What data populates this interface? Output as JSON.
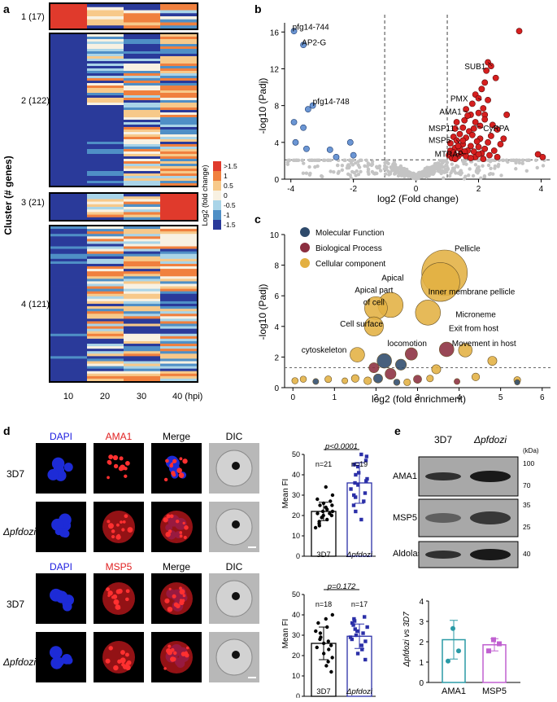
{
  "figure": {
    "panel_labels": {
      "a": "a",
      "b": "b",
      "c": "c",
      "d": "d",
      "e": "e"
    }
  },
  "panel_a": {
    "y_title": "Cluster (# genes)",
    "x_ticks": [
      "10",
      "20",
      "30",
      "40 (hpi)"
    ],
    "clusters": [
      {
        "label": "1 (17)",
        "genes": 17
      },
      {
        "label": "2 (122)",
        "genes": 122
      },
      {
        "label": "3 (21)",
        "genes": 21
      },
      {
        "label": "4 (121)",
        "genes": 121
      }
    ],
    "colorbar": {
      "title": "Log2 (fold change)",
      "ticks": [
        ">1.5",
        "1",
        "0.5",
        "0",
        "-0.5",
        "-1",
        "-1.5"
      ],
      "colors": [
        "#e03a2c",
        "#f0803e",
        "#f7c98a",
        "#f8f1e2",
        "#a9d4e8",
        "#4f8fc6",
        "#2a3a9a"
      ]
    }
  },
  "panel_b": {
    "chart_data": {
      "type": "scatter",
      "xlabel": "log2 (Fold change)",
      "ylabel": "-log10 (Padj)",
      "xlim": [
        -4.2,
        4.3
      ],
      "ylim": [
        0,
        17
      ],
      "x_ticks": [
        "-4",
        "-2",
        "0",
        "2",
        "4"
      ],
      "y_ticks": [
        "0",
        "4",
        "8",
        "12",
        "16"
      ],
      "thresholds": {
        "x": [
          -1,
          1
        ],
        "y": 2.1
      },
      "annotations": [
        {
          "text": "pfg14-744",
          "x": -3.9,
          "y": 16.1
        },
        {
          "text": "AP2-G",
          "x": -3.6,
          "y": 14.6
        },
        {
          "text": "pfg14-748",
          "x": -3.3,
          "y": 8.0
        },
        {
          "text": "SUB1",
          "x": 2.3,
          "y": 12.7
        },
        {
          "text": "PMX",
          "x": 2.1,
          "y": 8.6
        },
        {
          "text": "AMA1",
          "x": 1.5,
          "y": 7.4
        },
        {
          "text": "CyRPA",
          "x": 1.9,
          "y": 5.8
        },
        {
          "text": "MSP11",
          "x": 1.4,
          "y": 5.4
        },
        {
          "text": "MSP5",
          "x": 1.4,
          "y": 3.9
        },
        {
          "text": "MTRAP",
          "x": 1.6,
          "y": 2.8
        }
      ],
      "down_points": [
        [
          -3.9,
          16.1
        ],
        [
          -3.6,
          14.6
        ],
        [
          -3.3,
          8.0
        ],
        [
          -3.45,
          7.6
        ],
        [
          -3.9,
          6.2
        ],
        [
          -3.6,
          5.6
        ],
        [
          -3.85,
          4.0
        ],
        [
          -3.5,
          3.3
        ],
        [
          -2.75,
          3.2
        ],
        [
          -2.1,
          4.0
        ],
        [
          -2.0,
          2.6
        ],
        [
          -2.55,
          2.4
        ]
      ],
      "up_points": [
        [
          3.3,
          16.1
        ],
        [
          2.3,
          12.7
        ],
        [
          2.4,
          12.3
        ],
        [
          2.25,
          11.8
        ],
        [
          2.55,
          11.0
        ],
        [
          2.2,
          10.5
        ],
        [
          2.1,
          9.8
        ],
        [
          1.9,
          9.2
        ],
        [
          2.0,
          8.8
        ],
        [
          1.8,
          8.2
        ],
        [
          2.3,
          8.6
        ],
        [
          1.6,
          7.6
        ],
        [
          1.75,
          7.0
        ],
        [
          2.0,
          7.2
        ],
        [
          2.2,
          7.0
        ],
        [
          1.55,
          6.4
        ],
        [
          1.9,
          6.2
        ],
        [
          1.3,
          6.2
        ],
        [
          2.05,
          5.8
        ],
        [
          1.5,
          5.6
        ],
        [
          1.25,
          5.5
        ],
        [
          1.7,
          5.2
        ],
        [
          2.6,
          5.4
        ],
        [
          2.9,
          7.0
        ],
        [
          2.2,
          6.5
        ],
        [
          1.4,
          4.9
        ],
        [
          1.8,
          4.8
        ],
        [
          2.4,
          4.7
        ],
        [
          1.2,
          4.6
        ],
        [
          1.6,
          4.5
        ],
        [
          2.05,
          4.4
        ],
        [
          1.3,
          4.2
        ],
        [
          1.95,
          4.1
        ],
        [
          2.3,
          4.0
        ],
        [
          1.1,
          3.9
        ],
        [
          1.5,
          3.8
        ],
        [
          2.7,
          3.8
        ],
        [
          1.75,
          3.6
        ],
        [
          2.0,
          3.5
        ],
        [
          1.25,
          3.4
        ],
        [
          1.4,
          3.3
        ],
        [
          2.2,
          3.3
        ],
        [
          1.1,
          3.1
        ],
        [
          1.65,
          3.1
        ],
        [
          1.85,
          3.0
        ],
        [
          2.5,
          3.1
        ],
        [
          1.2,
          2.9
        ],
        [
          1.45,
          2.8
        ],
        [
          2.1,
          2.8
        ],
        [
          2.35,
          2.6
        ],
        [
          1.05,
          2.6
        ],
        [
          1.35,
          2.5
        ],
        [
          1.6,
          2.5
        ],
        [
          1.9,
          2.4
        ],
        [
          2.6,
          2.4
        ],
        [
          1.15,
          2.3
        ],
        [
          1.75,
          2.3
        ],
        [
          2.15,
          2.2
        ],
        [
          3.9,
          2.7
        ],
        [
          4.05,
          2.4
        ],
        [
          1.5,
          4.2
        ],
        [
          1.85,
          5.5
        ],
        [
          2.45,
          5.9
        ],
        [
          1.65,
          6.9
        ],
        [
          2.15,
          7.7
        ],
        [
          1.35,
          3.6
        ],
        [
          2.8,
          4.4
        ],
        [
          1.55,
          3.0
        ],
        [
          2.0,
          2.7
        ],
        [
          1.25,
          2.2
        ]
      ]
    }
  },
  "panel_c": {
    "chart_data": {
      "type": "scatter",
      "xlabel": "log2 (fold enrichment)",
      "ylabel": "-log10 (Padj)",
      "xlim": [
        -0.2,
        6.2
      ],
      "ylim": [
        0,
        10
      ],
      "x_ticks": [
        "0",
        "1",
        "2",
        "3",
        "4",
        "5",
        "6"
      ],
      "y_ticks": [
        "0",
        "2",
        "4",
        "6",
        "8",
        "10"
      ],
      "threshold_y": 1.3,
      "legend": [
        {
          "label": "Molecular Function",
          "color": "#2e4a6b"
        },
        {
          "label": "Biological Process",
          "color": "#8b2e3f"
        },
        {
          "label": "Cellular component",
          "color": "#e3b042"
        }
      ],
      "bubbles": [
        {
          "x": 3.65,
          "y": 7.5,
          "r": 1.0,
          "cat": 2
        },
        {
          "x": 3.55,
          "y": 6.9,
          "r": 0.85,
          "cat": 2
        },
        {
          "x": 2.35,
          "y": 5.4,
          "r": 0.55,
          "cat": 2
        },
        {
          "x": 2.0,
          "y": 5.2,
          "r": 0.5,
          "cat": 2
        },
        {
          "x": 3.25,
          "y": 4.9,
          "r": 0.55,
          "cat": 2
        },
        {
          "x": 1.95,
          "y": 4.0,
          "r": 0.42,
          "cat": 2
        },
        {
          "x": 1.55,
          "y": 2.15,
          "r": 0.32,
          "cat": 2
        },
        {
          "x": 2.2,
          "y": 1.75,
          "r": 0.32,
          "cat": 0
        },
        {
          "x": 2.85,
          "y": 2.2,
          "r": 0.27,
          "cat": 1
        },
        {
          "x": 3.7,
          "y": 2.5,
          "r": 0.32,
          "cat": 1
        },
        {
          "x": 4.15,
          "y": 2.45,
          "r": 0.3,
          "cat": 2
        },
        {
          "x": 2.6,
          "y": 1.5,
          "r": 0.24,
          "cat": 0
        },
        {
          "x": 1.95,
          "y": 1.3,
          "r": 0.22,
          "cat": 1
        },
        {
          "x": 3.45,
          "y": 1.2,
          "r": 0.2,
          "cat": 2
        },
        {
          "x": 4.8,
          "y": 1.75,
          "r": 0.2,
          "cat": 2
        },
        {
          "x": 2.35,
          "y": 0.9,
          "r": 0.24,
          "cat": 1
        },
        {
          "x": 2.05,
          "y": 0.6,
          "r": 0.2,
          "cat": 0
        },
        {
          "x": 3.0,
          "y": 0.55,
          "r": 0.18,
          "cat": 1
        },
        {
          "x": 4.4,
          "y": 0.7,
          "r": 0.17,
          "cat": 2
        },
        {
          "x": 1.5,
          "y": 0.6,
          "r": 0.17,
          "cat": 2
        },
        {
          "x": 1.25,
          "y": 0.45,
          "r": 0.13,
          "cat": 2
        },
        {
          "x": 0.85,
          "y": 0.55,
          "r": 0.15,
          "cat": 2
        },
        {
          "x": 0.55,
          "y": 0.4,
          "r": 0.13,
          "cat": 0
        },
        {
          "x": 0.25,
          "y": 0.55,
          "r": 0.14,
          "cat": 2
        },
        {
          "x": 0.05,
          "y": 0.45,
          "r": 0.14,
          "cat": 2
        },
        {
          "x": 2.75,
          "y": 0.35,
          "r": 0.15,
          "cat": 2
        },
        {
          "x": 3.95,
          "y": 0.4,
          "r": 0.13,
          "cat": 1
        },
        {
          "x": 5.4,
          "y": 0.5,
          "r": 0.15,
          "cat": 2
        },
        {
          "x": 5.4,
          "y": 0.35,
          "r": 0.12,
          "cat": 0
        },
        {
          "x": 2.5,
          "y": 0.35,
          "r": 0.14,
          "cat": 0
        },
        {
          "x": 1.8,
          "y": 0.45,
          "r": 0.17,
          "cat": 2
        },
        {
          "x": 3.3,
          "y": 0.6,
          "r": 0.15,
          "cat": 2
        }
      ],
      "annotations": [
        {
          "text": "Pellicle",
          "x": 4.2,
          "y": 8.9
        },
        {
          "text": "Apical",
          "x": 2.4,
          "y": 7.0
        },
        {
          "text": "Inner membrane pellicle",
          "x": 4.3,
          "y": 6.1
        },
        {
          "text": "Apical part",
          "x": 1.95,
          "y": 6.2
        },
        {
          "text": "of cell",
          "x": 1.95,
          "y": 5.4
        },
        {
          "text": "Microneme",
          "x": 4.4,
          "y": 4.6
        },
        {
          "text": "Cell surface",
          "x": 1.65,
          "y": 4.0
        },
        {
          "text": "Exit from host",
          "x": 4.35,
          "y": 3.7
        },
        {
          "text": "locomotion",
          "x": 2.75,
          "y": 2.7
        },
        {
          "text": "Movement in host",
          "x": 4.6,
          "y": 2.7
        },
        {
          "text": "cytoskeleton",
          "x": 0.75,
          "y": 2.3
        }
      ]
    }
  },
  "panel_d": {
    "ama1": {
      "col_labels": [
        "DAPI",
        "AMA1",
        "Merge",
        "DIC"
      ],
      "row_labels": [
        "3D7",
        "Δpfdozi"
      ],
      "chart_data": {
        "type": "bar",
        "ylabel": "Mean FI",
        "ylim": [
          0,
          50
        ],
        "y_ticks": [
          "0",
          "10",
          "20",
          "30",
          "40",
          "50"
        ],
        "categories": [
          "3D7",
          "Δpfdozi"
        ],
        "values": [
          22,
          36
        ],
        "errors": [
          4.5,
          10
        ],
        "n_labels": [
          "n=21",
          "n=19"
        ],
        "p_label": "p<0.0001",
        "colors": [
          "#000000",
          "#2b2fa8"
        ],
        "points": [
          [
            14,
            15,
            16,
            17,
            18,
            19,
            20,
            20,
            21,
            21,
            22,
            22,
            23,
            24,
            25,
            26,
            27,
            28,
            30,
            34,
            25
          ],
          [
            18,
            22,
            25,
            27,
            29,
            30,
            31,
            33,
            35,
            36,
            38,
            40,
            41,
            44,
            45,
            47,
            49,
            50,
            37
          ]
        ]
      }
    },
    "msp5": {
      "col_labels": [
        "DAPI",
        "MSP5",
        "Merge",
        "DIC"
      ],
      "row_labels": [
        "3D7",
        "Δpfdozi"
      ],
      "chart_data": {
        "type": "bar",
        "ylabel": "Mean FI",
        "ylim": [
          0,
          50
        ],
        "y_ticks": [
          "0",
          "10",
          "20",
          "30",
          "40",
          "50"
        ],
        "categories": [
          "3D7",
          "Δpfdozi"
        ],
        "values": [
          26,
          29.5
        ],
        "errors": [
          8,
          6
        ],
        "n_labels": [
          "n=18",
          "n=17"
        ],
        "p_label": "p=0.172",
        "colors": [
          "#000000",
          "#2b2fa8"
        ],
        "points": [
          [
            12,
            15,
            17,
            19,
            21,
            23,
            24,
            25,
            26,
            27,
            28,
            29,
            31,
            32,
            34,
            36,
            38,
            40
          ],
          [
            18,
            21,
            23,
            25,
            27,
            28,
            29,
            30,
            31,
            32,
            33,
            34,
            35,
            36,
            38,
            39,
            37
          ]
        ]
      }
    }
  },
  "panel_e": {
    "blot": {
      "col_labels": [
        "3D7",
        "Δpfdozi"
      ],
      "kda_label": "(kDa)",
      "rows": [
        {
          "label": "AMA1",
          "markers": [
            "100",
            "70"
          ]
        },
        {
          "label": "MSP5",
          "markers": [
            "35",
            "25"
          ]
        },
        {
          "label": "Aldolase",
          "markers": [
            "40"
          ]
        }
      ]
    },
    "chart_data": {
      "type": "bar",
      "ylabel": "Δpfdozi vs 3D7",
      "ylim": [
        0,
        4
      ],
      "y_ticks": [
        "0",
        "1",
        "2",
        "3",
        "4"
      ],
      "categories": [
        "AMA1",
        "MSP5"
      ],
      "values": [
        2.1,
        1.85
      ],
      "errors": [
        0.95,
        0.3
      ],
      "colors": [
        "#2a9aa6",
        "#c060d0"
      ],
      "points": [
        [
          2.65,
          1.55,
          1.05
        ],
        [
          2.1,
          1.9,
          1.55
        ]
      ]
    }
  }
}
